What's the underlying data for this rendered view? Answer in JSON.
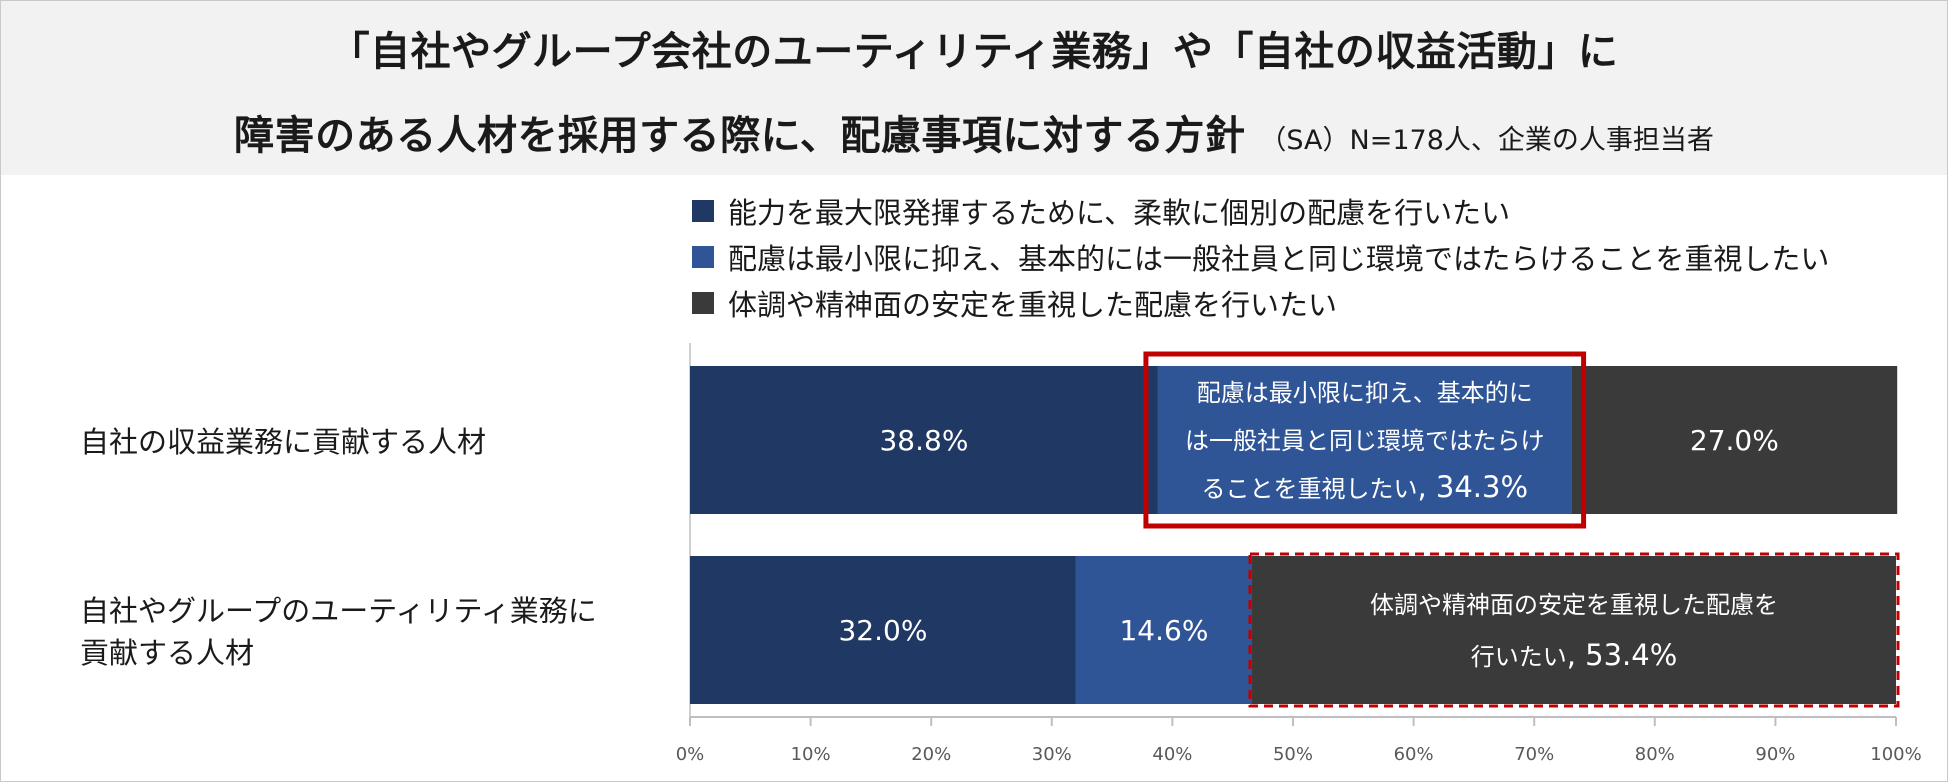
{
  "title": {
    "line1": "「自社やグループ会社のユーティリティ業務」や「自社の収益活動」に",
    "line2_main": "障害のある人材を採用する際に、配慮事項に対する方針",
    "line2_sub": "（SA）N=178人、企業の人事担当者"
  },
  "chart_data": {
    "type": "bar",
    "orientation": "horizontal",
    "stacked": true,
    "categories": [
      "自社の収益業務に貢献する人材",
      "自社やグループのユーティリティ業務に貢献する人材"
    ],
    "category_lines": [
      [
        "自社の収益業務に貢献する人材"
      ],
      [
        "自社やグループのユーティリティ業務に",
        "貢献する人材"
      ]
    ],
    "series": [
      {
        "name": "能力を最大限発揮するために、柔軟に個別の配慮を行いたい",
        "values": [
          38.8,
          32.0
        ],
        "color": "#203864"
      },
      {
        "name": "配慮は最小限に抑え、基本的には一般社員と同じ環境ではたらけることを重視したい",
        "values": [
          34.3,
          14.6
        ],
        "color": "#2f5597"
      },
      {
        "name": "体調や精神面の安定を重視した配慮を行いたい",
        "values": [
          27.0,
          53.4
        ],
        "color": "#3a3a3a"
      }
    ],
    "xlim": [
      0,
      100
    ],
    "x_ticks": [
      "0%",
      "10%",
      "20%",
      "30%",
      "40%",
      "50%",
      "60%",
      "70%",
      "80%",
      "90%",
      "100%"
    ],
    "data_labels": [
      [
        "38.8%",
        "34.3%",
        "27.0%"
      ],
      [
        "32.0%",
        "14.6%",
        "53.4%"
      ]
    ],
    "callouts": [
      {
        "category_index": 0,
        "series_index": 1,
        "border": "solid",
        "border_color": "#c00000",
        "text_lines": [
          "配慮は最小限に抑え、基本的に",
          "は一般社員と同じ環境ではたらけ",
          "ることを重視したい"
        ],
        "value": ", 34.3%"
      },
      {
        "category_index": 1,
        "series_index": 2,
        "border": "dashed",
        "border_color": "#c00000",
        "text_lines": [
          "体調や精神面の安定を重視した配慮を",
          "行いたい"
        ],
        "value": ", 53.4%"
      }
    ],
    "legend_position": "top",
    "grid": false
  }
}
